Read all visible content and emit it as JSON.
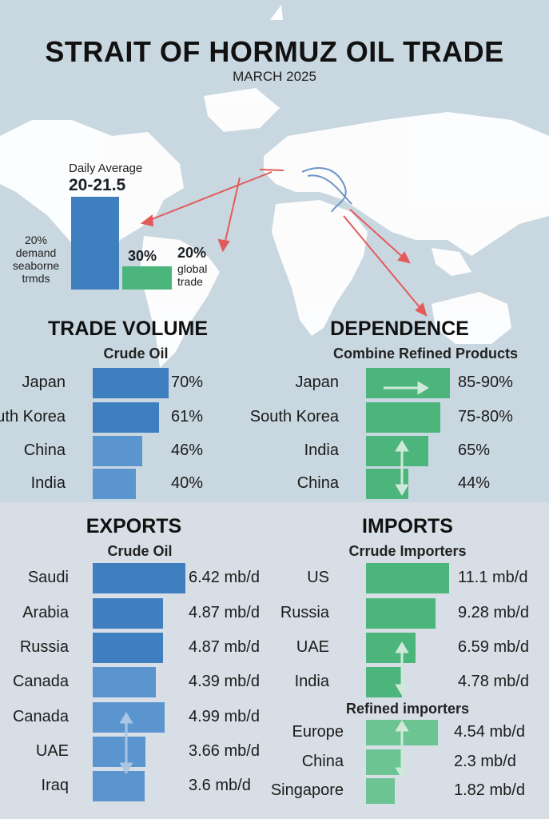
{
  "header": {
    "title": "STRAIT OF HORMUZ OIL TRADE",
    "subtitle": "MARCH 2025"
  },
  "map": {
    "daily_average_label": "Daily Average",
    "daily_average_value": "20-21.5",
    "left_note": "20% demand seaborne trmds",
    "bar2_value": "30%",
    "right_note_value": "20%",
    "right_note_text": "global trade",
    "colors": {
      "water": "#c9d7e1",
      "land": "#ffffff",
      "arrow": "#e35a5a",
      "route": "#6f93c4"
    }
  },
  "chart_data": [
    {
      "type": "bar",
      "title": "TRADE VOLUME",
      "subtitle": "Crude Oil",
      "categories": [
        "Japan",
        "South Korea",
        "China",
        "India"
      ],
      "labels": [
        "70%",
        "61%",
        "46%",
        "40%"
      ],
      "values": [
        70,
        61,
        46,
        40
      ],
      "color": "#3f7fc0"
    },
    {
      "type": "bar",
      "title": "DEPENDENCE",
      "subtitle": "Combine Refined Products",
      "categories": [
        "Japan",
        "South Korea",
        "India",
        "China"
      ],
      "labels": [
        "85-90%",
        "75-80%",
        "65%",
        "44%"
      ],
      "values": [
        87.5,
        77.5,
        65,
        44
      ],
      "color": "#4cb57c"
    },
    {
      "type": "bar",
      "title": "EXPORTS",
      "subtitle": "Crude Oil",
      "categories": [
        "Saudi",
        "Arabia",
        "Russia",
        "Canada",
        "Canada",
        "UAE",
        "Iraq"
      ],
      "labels": [
        "6.42 mb/d",
        "4.87 mb/d",
        "4.87 mb/d",
        "4.39 mb/d",
        "4.99 mb/d",
        "3.66 mb/d",
        "3.6 mb/d"
      ],
      "values": [
        6.42,
        4.87,
        4.87,
        4.39,
        4.99,
        3.66,
        3.6
      ],
      "color": "#3f7fc0"
    },
    {
      "type": "bar",
      "title": "IMPORTS",
      "subtitle": "Crrude Importers",
      "categories": [
        "US",
        "Russia",
        "UAE",
        "India"
      ],
      "labels": [
        "11.1 mb/d",
        "9.28 mb/d",
        "6.59 mb/d",
        "4.78 mb/d"
      ],
      "values": [
        11.1,
        9.28,
        6.59,
        4.78
      ],
      "color": "#4cb57c"
    },
    {
      "type": "bar",
      "title": "Refined importers",
      "categories": [
        "Europe",
        "China",
        "Singapore"
      ],
      "labels": [
        "4.54 mb/d",
        "2.3 mb/d",
        "1.82 mb/d"
      ],
      "values": [
        4.54,
        2.3,
        1.82
      ],
      "color": "#6bc492"
    }
  ]
}
